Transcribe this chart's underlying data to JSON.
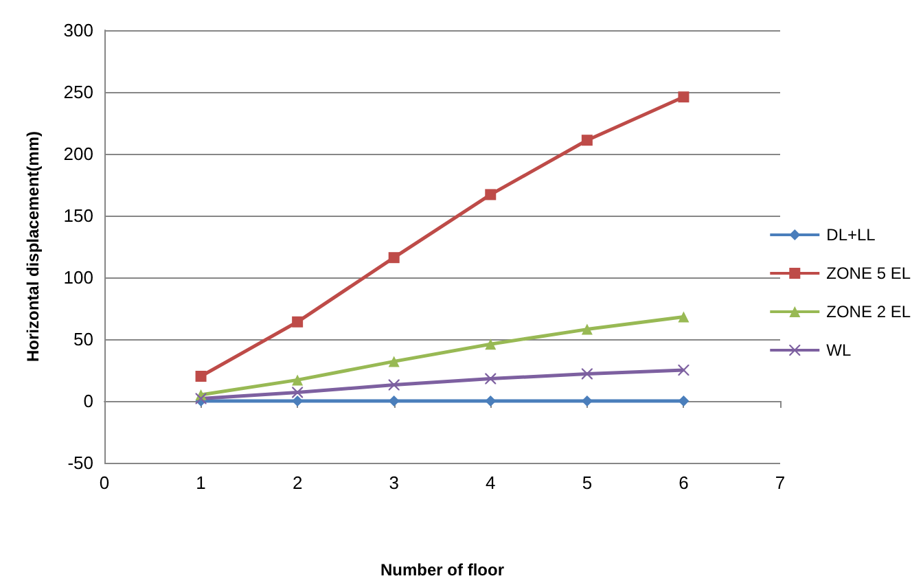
{
  "chart_data": {
    "type": "line",
    "xlabel": "Number of floor",
    "ylabel": "Horizontal displacement(mm)",
    "x": [
      1,
      2,
      3,
      4,
      5,
      6
    ],
    "series": [
      {
        "name": "DL+LL",
        "color": "#4a7ebb",
        "marker": "diamond",
        "values": [
          0,
          0,
          0,
          0,
          0,
          0
        ]
      },
      {
        "name": "ZONE 5 EL",
        "color": "#be4b48",
        "marker": "square",
        "values": [
          20,
          64,
          116,
          167,
          211,
          246
        ]
      },
      {
        "name": "ZONE 2 EL",
        "color": "#98b954",
        "marker": "triangle",
        "values": [
          5,
          17,
          32,
          46,
          58,
          68
        ]
      },
      {
        "name": "WL",
        "color": "#7d60a0",
        "marker": "cross",
        "values": [
          2,
          7,
          13,
          18,
          22,
          25
        ]
      }
    ],
    "xlim": [
      0,
      7
    ],
    "xticks": [
      0,
      1,
      2,
      3,
      4,
      5,
      6,
      7
    ],
    "ylim": [
      -50,
      300
    ],
    "yticks": [
      -50,
      0,
      50,
      100,
      150,
      200,
      250,
      300
    ],
    "grid": "y",
    "legend": "right",
    "line_style": "solid"
  }
}
